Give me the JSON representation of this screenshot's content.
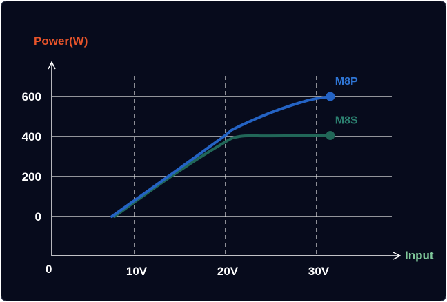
{
  "chart_data": {
    "type": "line",
    "ylabel": "Power(W)",
    "xlabel": "Input",
    "origin_label": "0",
    "x_ticks": [
      {
        "value": 10,
        "label": "10V"
      },
      {
        "value": 20,
        "label": "20V"
      },
      {
        "value": 30,
        "label": "30V"
      }
    ],
    "y_ticks": [
      {
        "value": 0,
        "label": "0"
      },
      {
        "value": 200,
        "label": "200"
      },
      {
        "value": 400,
        "label": "400"
      },
      {
        "value": 600,
        "label": "600"
      }
    ],
    "xlim": [
      0,
      40
    ],
    "ylim": [
      -200,
      800
    ],
    "series": [
      {
        "name": "M8P",
        "color": "#2463c4",
        "label_color": "#2f76d6",
        "end_marker": true,
        "points": [
          [
            7.5,
            0
          ],
          [
            14,
            210
          ],
          [
            19.8,
            400
          ],
          [
            21,
            440
          ],
          [
            25,
            520
          ],
          [
            29,
            580
          ],
          [
            31.5,
            600
          ]
        ]
      },
      {
        "name": "M8S",
        "color": "#216758",
        "label_color": "#2c8070",
        "end_marker": true,
        "points": [
          [
            7.8,
            0
          ],
          [
            14,
            200
          ],
          [
            19.5,
            360
          ],
          [
            21.5,
            400
          ],
          [
            25,
            403
          ],
          [
            31.5,
            405
          ]
        ]
      }
    ],
    "colors": {
      "background": "#070b1c",
      "grid": "#e6e6e6",
      "axis": "#ffffff",
      "ylabel": "#e8542a",
      "xlabel": "#7fc79a"
    }
  }
}
